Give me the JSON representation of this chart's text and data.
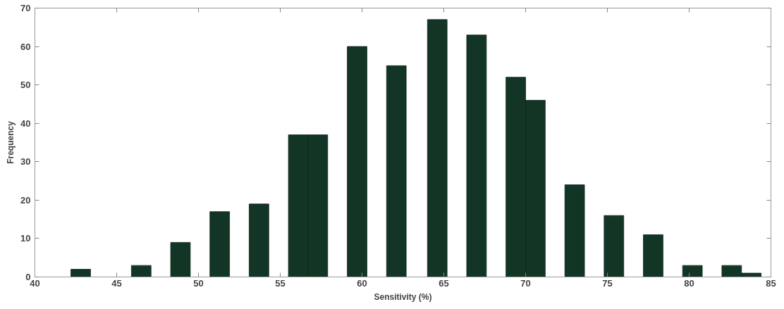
{
  "chart_data": {
    "type": "bar",
    "xlabel": "Sensitivity (%)",
    "ylabel": "Frequency",
    "x": [
      42.8,
      46.5,
      48.9,
      51.3,
      53.7,
      56.1,
      57.3,
      59.7,
      62.1,
      64.6,
      67.0,
      69.4,
      70.6,
      73.0,
      75.4,
      77.8,
      80.2,
      82.6,
      83.8
    ],
    "values": [
      2,
      3,
      9,
      17,
      19,
      37,
      37,
      60,
      55,
      67,
      63,
      52,
      46,
      24,
      16,
      11,
      3,
      3,
      1
    ],
    "color": "#133526",
    "xlim": [
      40,
      85
    ],
    "xticks": [
      40,
      45,
      50,
      55,
      60,
      65,
      70,
      75,
      80,
      85
    ],
    "ylim": [
      0,
      70
    ],
    "yticks": [
      0,
      10,
      20,
      30,
      40,
      50,
      60,
      70
    ],
    "grid": false
  }
}
